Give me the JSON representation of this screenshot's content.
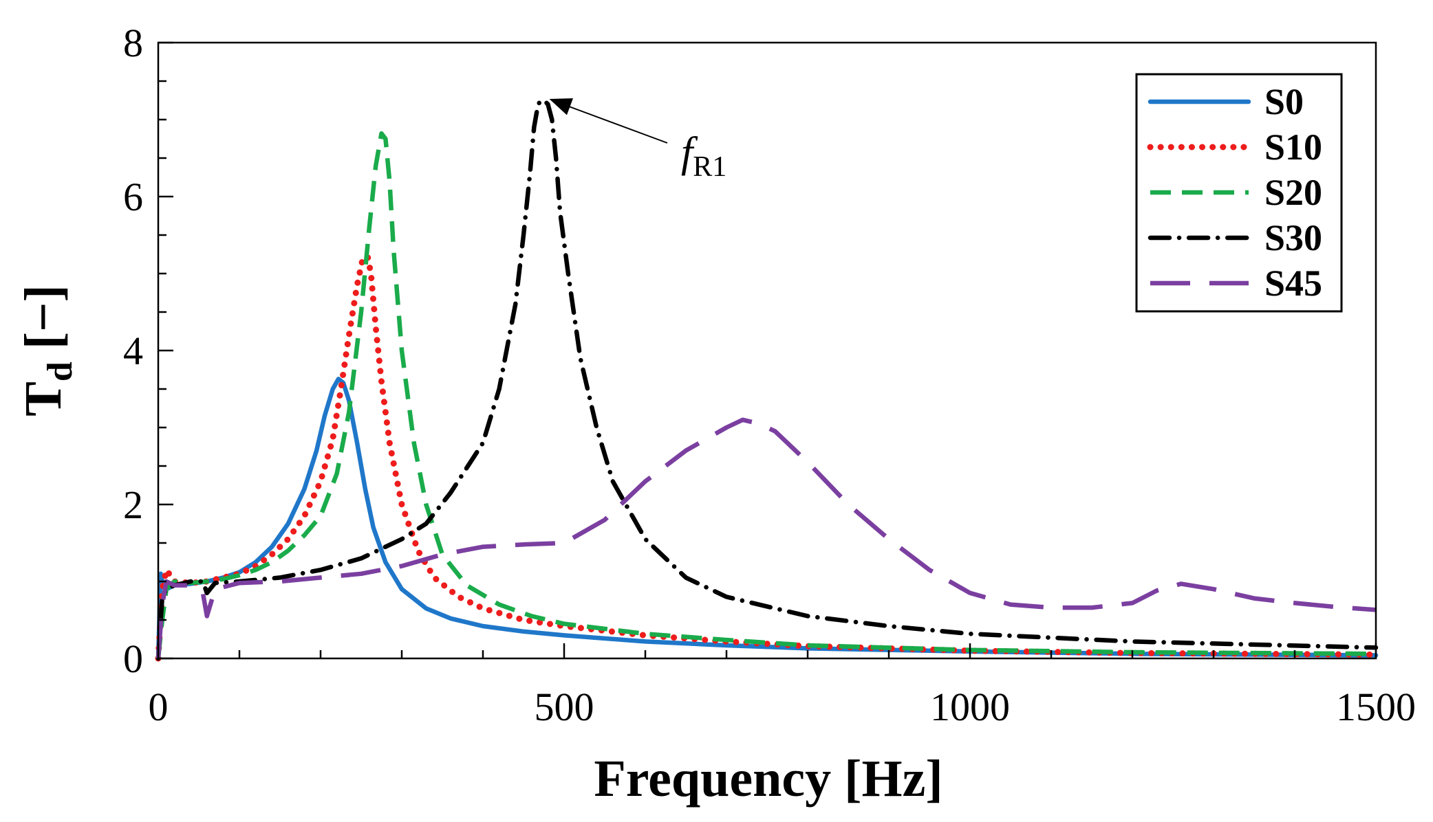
{
  "chart_data": {
    "type": "line",
    "xlabel": "Frequency [Hz]",
    "ylabel_main": "T",
    "ylabel_sub": "d",
    "ylabel_unit": "[−]",
    "xlim": [
      0,
      1500
    ],
    "ylim": [
      0,
      8
    ],
    "x_ticks": [
      0,
      500,
      1000,
      1500
    ],
    "y_ticks": [
      0,
      2,
      4,
      6,
      8
    ],
    "x_minor_step": 100,
    "y_minor_step": 0.5,
    "grid": false,
    "legend_position": "top-right",
    "annotation": {
      "label_main": "f",
      "label_sub": "R1",
      "points_to": {
        "x": 475,
        "y": 7.25
      }
    },
    "series": [
      {
        "name": "S0",
        "color": "#1f77c9",
        "dash": "solid",
        "x": [
          0,
          3,
          6,
          10,
          20,
          40,
          60,
          80,
          100,
          120,
          140,
          160,
          180,
          195,
          205,
          215,
          222,
          228,
          235,
          245,
          255,
          265,
          280,
          300,
          330,
          360,
          400,
          450,
          500,
          600,
          700,
          800,
          1000,
          1200,
          1500
        ],
        "y": [
          0,
          1.1,
          0.95,
          0.9,
          0.95,
          0.97,
          1.0,
          1.05,
          1.12,
          1.25,
          1.45,
          1.75,
          2.2,
          2.7,
          3.15,
          3.5,
          3.63,
          3.58,
          3.35,
          2.8,
          2.2,
          1.7,
          1.25,
          0.9,
          0.65,
          0.52,
          0.42,
          0.35,
          0.3,
          0.22,
          0.17,
          0.13,
          0.09,
          0.06,
          0.04
        ]
      },
      {
        "name": "S10",
        "color": "#ee1c1c",
        "dash": "dot",
        "x": [
          0,
          5,
          10,
          20,
          40,
          60,
          80,
          100,
          120,
          140,
          160,
          180,
          200,
          215,
          225,
          235,
          245,
          252,
          258,
          262,
          268,
          275,
          285,
          300,
          320,
          340,
          370,
          400,
          450,
          500,
          600,
          700,
          800,
          1000,
          1200,
          1500
        ],
        "y": [
          0,
          0.9,
          1.15,
          1.0,
          0.98,
          1.0,
          1.05,
          1.1,
          1.2,
          1.35,
          1.55,
          1.85,
          2.3,
          2.85,
          3.5,
          4.2,
          4.85,
          5.2,
          5.22,
          5.0,
          4.3,
          3.6,
          2.8,
          2.0,
          1.4,
          1.05,
          0.8,
          0.65,
          0.5,
          0.42,
          0.3,
          0.22,
          0.16,
          0.1,
          0.07,
          0.05
        ]
      },
      {
        "name": "S20",
        "color": "#1aab4b",
        "dash": "dash",
        "x": [
          0,
          5,
          10,
          20,
          40,
          60,
          80,
          100,
          120,
          140,
          160,
          180,
          200,
          220,
          235,
          250,
          260,
          268,
          275,
          280,
          285,
          290,
          300,
          315,
          330,
          350,
          380,
          420,
          460,
          500,
          600,
          700,
          800,
          1000,
          1200,
          1500
        ],
        "y": [
          0,
          0.5,
          0.9,
          1.0,
          0.98,
          1.0,
          1.03,
          1.08,
          1.15,
          1.25,
          1.4,
          1.6,
          1.85,
          2.4,
          3.2,
          4.5,
          5.6,
          6.4,
          6.82,
          6.75,
          6.2,
          5.3,
          4.0,
          2.8,
          2.0,
          1.35,
          0.95,
          0.7,
          0.55,
          0.45,
          0.32,
          0.24,
          0.17,
          0.11,
          0.08,
          0.06
        ]
      },
      {
        "name": "S30",
        "color": "#000000",
        "dash": "dashdot",
        "x": [
          0,
          5,
          10,
          20,
          40,
          55,
          60,
          70,
          100,
          150,
          200,
          250,
          300,
          330,
          360,
          400,
          420,
          440,
          450,
          458,
          463,
          468,
          472,
          475,
          480,
          485,
          490,
          495,
          505,
          520,
          540,
          560,
          600,
          650,
          700,
          800,
          900,
          1000,
          1200,
          1500
        ],
        "y": [
          0,
          0.8,
          0.9,
          0.95,
          1.0,
          1.0,
          0.85,
          0.98,
          1.0,
          1.05,
          1.15,
          1.3,
          1.55,
          1.75,
          2.15,
          2.8,
          3.5,
          4.6,
          5.5,
          6.3,
          6.9,
          7.2,
          7.25,
          7.25,
          7.2,
          7.0,
          6.5,
          5.8,
          5.0,
          3.9,
          3.0,
          2.3,
          1.55,
          1.05,
          0.8,
          0.55,
          0.42,
          0.32,
          0.22,
          0.14
        ]
      },
      {
        "name": "S45",
        "color": "#7b3fa0",
        "dash": "longdash",
        "x": [
          0,
          5,
          10,
          20,
          40,
          55,
          60,
          70,
          100,
          150,
          200,
          250,
          300,
          350,
          400,
          450,
          500,
          550,
          600,
          650,
          700,
          720,
          740,
          760,
          800,
          850,
          900,
          950,
          1000,
          1050,
          1100,
          1150,
          1200,
          1230,
          1260,
          1300,
          1350,
          1400,
          1450,
          1500
        ],
        "y": [
          0,
          0.7,
          1.0,
          0.95,
          0.95,
          0.85,
          0.55,
          0.9,
          0.98,
          1.0,
          1.05,
          1.1,
          1.2,
          1.35,
          1.45,
          1.48,
          1.5,
          1.8,
          2.3,
          2.7,
          3.0,
          3.1,
          3.05,
          2.95,
          2.55,
          2.0,
          1.55,
          1.15,
          0.85,
          0.7,
          0.66,
          0.66,
          0.72,
          0.88,
          0.97,
          0.9,
          0.78,
          0.72,
          0.67,
          0.63
        ]
      }
    ]
  }
}
